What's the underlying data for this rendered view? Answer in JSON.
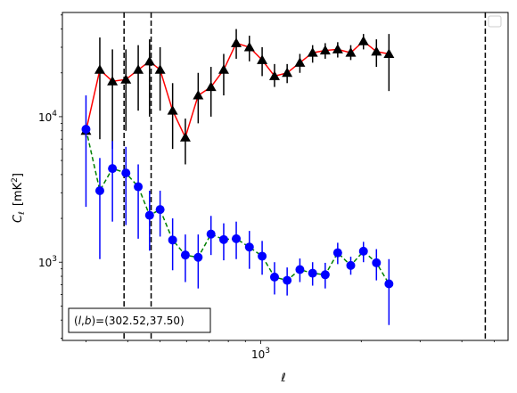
{
  "chart_data": {
    "type": "line",
    "xscale": "log",
    "yscale": "log",
    "xlim": [
      255,
      5500
    ],
    "ylim": [
      290,
      52000
    ],
    "xlabel_tex": "ℓ",
    "ylabel_main": "C",
    "ylabel_sub": "ℓ",
    "ylabel_unit": "[mK",
    "ylabel_unit_sup": "2",
    "ylabel_unit_end": "]",
    "x_ticks_labeled": [
      {
        "value": 1000,
        "base": "10",
        "exp": "3"
      }
    ],
    "y_ticks_labeled": [
      {
        "value": 1000,
        "base": "10",
        "exp": "3"
      },
      {
        "value": 10000,
        "base": "10",
        "exp": "4"
      }
    ],
    "vlines": [
      390,
      470,
      4700
    ],
    "annotation": "(l, b)=(302.52,37.50)",
    "annotation_parts": {
      "italic_l": "l",
      "comma": ",",
      "italic_b": "b",
      "rest": ")=(302.52,37.50)",
      "open": "("
    },
    "legend": "upper right (empty)",
    "series": [
      {
        "marker": "triangle",
        "line_color": "#ff0000",
        "line_style": "solid",
        "marker_color": "#000000",
        "err_color": "#000000",
        "points": [
          {
            "x": 300,
            "y": 8000,
            "lo": 7200,
            "hi": 8800
          },
          {
            "x": 330,
            "y": 21000,
            "lo": 7000,
            "hi": 35000
          },
          {
            "x": 360,
            "y": 17500,
            "lo": 6000,
            "hi": 29000
          },
          {
            "x": 395,
            "y": 18000,
            "lo": 8000,
            "hi": 29000
          },
          {
            "x": 430,
            "y": 21000,
            "lo": 11000,
            "hi": 31000
          },
          {
            "x": 465,
            "y": 24000,
            "lo": 10000,
            "hi": 34000
          },
          {
            "x": 500,
            "y": 21000,
            "lo": 11000,
            "hi": 30000
          },
          {
            "x": 545,
            "y": 11000,
            "lo": 6000,
            "hi": 17000
          },
          {
            "x": 595,
            "y": 7200,
            "lo": 4700,
            "hi": 9700
          },
          {
            "x": 650,
            "y": 14000,
            "lo": 9000,
            "hi": 20000
          },
          {
            "x": 710,
            "y": 16000,
            "lo": 10000,
            "hi": 22000
          },
          {
            "x": 775,
            "y": 21000,
            "lo": 14000,
            "hi": 27000
          },
          {
            "x": 845,
            "y": 32000,
            "lo": 25000,
            "hi": 40000
          },
          {
            "x": 925,
            "y": 30000,
            "lo": 24000,
            "hi": 36000
          },
          {
            "x": 1010,
            "y": 24500,
            "lo": 19000,
            "hi": 30000
          },
          {
            "x": 1100,
            "y": 19000,
            "lo": 16000,
            "hi": 23000
          },
          {
            "x": 1200,
            "y": 20000,
            "lo": 17000,
            "hi": 23000
          },
          {
            "x": 1310,
            "y": 23500,
            "lo": 20000,
            "hi": 27000
          },
          {
            "x": 1430,
            "y": 27500,
            "lo": 23500,
            "hi": 31000
          },
          {
            "x": 1560,
            "y": 28500,
            "lo": 25000,
            "hi": 32000
          },
          {
            "x": 1700,
            "y": 29000,
            "lo": 25500,
            "hi": 32500
          },
          {
            "x": 1860,
            "y": 27500,
            "lo": 24500,
            "hi": 31000
          },
          {
            "x": 2030,
            "y": 33000,
            "lo": 29000,
            "hi": 37000
          },
          {
            "x": 2220,
            "y": 28000,
            "lo": 22000,
            "hi": 34000
          },
          {
            "x": 2420,
            "y": 27000,
            "lo": 15000,
            "hi": 37000
          }
        ]
      },
      {
        "marker": "circle",
        "line_color": "#008000",
        "line_style": "dashed",
        "marker_color": "#0000ff",
        "err_color": "#0000ff",
        "points": [
          {
            "x": 300,
            "y": 8200,
            "lo": 2400,
            "hi": 14000
          },
          {
            "x": 330,
            "y": 3100,
            "lo": 1050,
            "hi": 5200
          },
          {
            "x": 360,
            "y": 4400,
            "lo": 1900,
            "hi": 6800
          },
          {
            "x": 395,
            "y": 4100,
            "lo": 1800,
            "hi": 6200
          },
          {
            "x": 430,
            "y": 3300,
            "lo": 1450,
            "hi": 4700
          },
          {
            "x": 465,
            "y": 2100,
            "lo": 1200,
            "hi": 3100
          },
          {
            "x": 500,
            "y": 2300,
            "lo": 1500,
            "hi": 3100
          },
          {
            "x": 545,
            "y": 1420,
            "lo": 880,
            "hi": 2000
          },
          {
            "x": 595,
            "y": 1120,
            "lo": 730,
            "hi": 1550
          },
          {
            "x": 650,
            "y": 1080,
            "lo": 660,
            "hi": 1550
          },
          {
            "x": 710,
            "y": 1560,
            "lo": 1120,
            "hi": 2080
          },
          {
            "x": 775,
            "y": 1430,
            "lo": 1030,
            "hi": 1850
          },
          {
            "x": 845,
            "y": 1450,
            "lo": 1050,
            "hi": 1900
          },
          {
            "x": 925,
            "y": 1270,
            "lo": 900,
            "hi": 1640
          },
          {
            "x": 1010,
            "y": 1100,
            "lo": 820,
            "hi": 1400
          },
          {
            "x": 1100,
            "y": 790,
            "lo": 600,
            "hi": 1000
          },
          {
            "x": 1200,
            "y": 750,
            "lo": 590,
            "hi": 920
          },
          {
            "x": 1310,
            "y": 890,
            "lo": 730,
            "hi": 1060
          },
          {
            "x": 1430,
            "y": 840,
            "lo": 690,
            "hi": 1000
          },
          {
            "x": 1560,
            "y": 820,
            "lo": 660,
            "hi": 990
          },
          {
            "x": 1700,
            "y": 1160,
            "lo": 970,
            "hi": 1360
          },
          {
            "x": 1860,
            "y": 950,
            "lo": 820,
            "hi": 1090
          },
          {
            "x": 2030,
            "y": 1190,
            "lo": 1000,
            "hi": 1380
          },
          {
            "x": 2220,
            "y": 990,
            "lo": 750,
            "hi": 1230
          },
          {
            "x": 2420,
            "y": 710,
            "lo": 370,
            "hi": 1050
          }
        ]
      }
    ]
  }
}
